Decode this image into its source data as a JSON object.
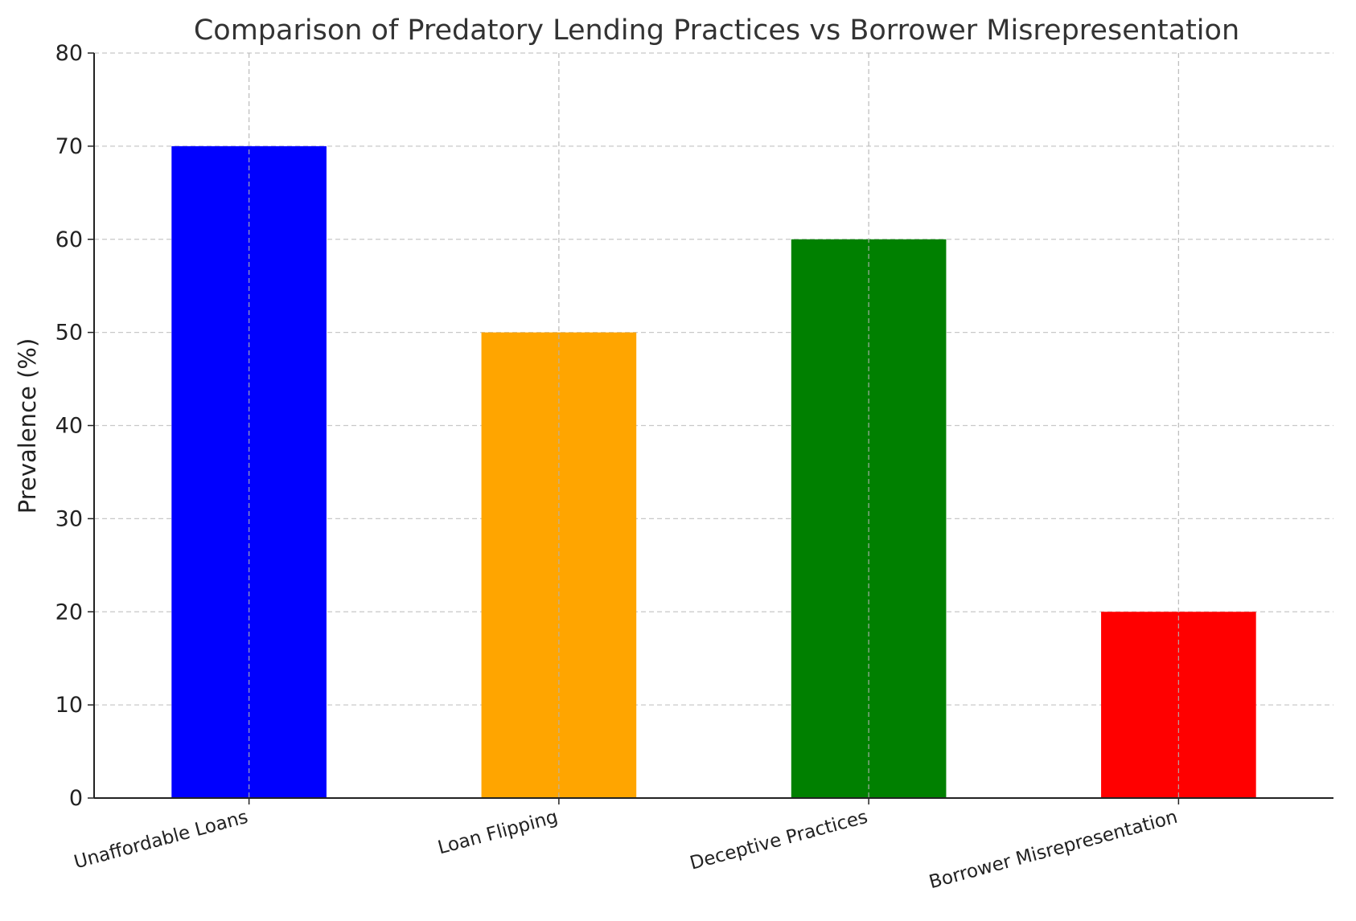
{
  "chart_data": {
    "type": "bar",
    "title": "Comparison of Predatory Lending Practices vs Borrower Misrepresentation",
    "xlabel": "",
    "ylabel": "Prevalence (%)",
    "categories": [
      "Unaffordable Loans",
      "Loan Flipping",
      "Deceptive Practices",
      "Borrower Misrepresentation"
    ],
    "values": [
      70,
      50,
      60,
      20
    ],
    "colors": [
      "#0000ff",
      "#ffa500",
      "#008000",
      "#ff0000"
    ],
    "ylim": [
      0,
      80
    ],
    "yticks": [
      0,
      10,
      20,
      30,
      40,
      50,
      60,
      70,
      80
    ],
    "grid": true,
    "legend": "none"
  }
}
